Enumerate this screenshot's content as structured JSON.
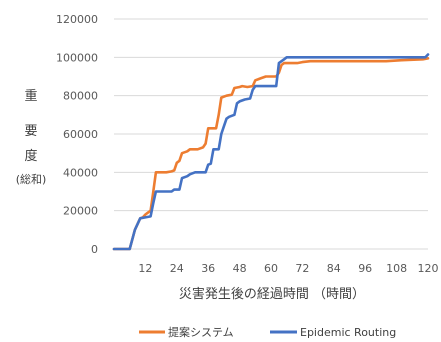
{
  "chart_data": {
    "type": "line",
    "xlabel": "災害発生後の経過時間 （時間）",
    "ylabel_chars": [
      "重",
      "要",
      "度"
    ],
    "ylabel_sub": "(総和)",
    "xlim": [
      0,
      120
    ],
    "ylim": [
      0,
      120000
    ],
    "xticks": [
      12,
      24,
      36,
      48,
      60,
      72,
      84,
      96,
      108,
      120
    ],
    "yticks": [
      0,
      20000,
      40000,
      60000,
      80000,
      100000,
      120000
    ],
    "grid": "horizontal",
    "legend_position": "bottom",
    "series": [
      {
        "name": "提案システム",
        "color": "#ED7D31",
        "points": [
          [
            0,
            0
          ],
          [
            6,
            0
          ],
          [
            8,
            10000
          ],
          [
            10,
            16000
          ],
          [
            11,
            16500
          ],
          [
            12,
            18000
          ],
          [
            13,
            19000
          ],
          [
            14,
            20000
          ],
          [
            15,
            30000
          ],
          [
            16,
            40000
          ],
          [
            20,
            40000
          ],
          [
            22,
            40500
          ],
          [
            23,
            41000
          ],
          [
            24,
            45000
          ],
          [
            25,
            46000
          ],
          [
            26,
            50000
          ],
          [
            28,
            51000
          ],
          [
            29,
            52000
          ],
          [
            32,
            52000
          ],
          [
            34,
            53000
          ],
          [
            35,
            55000
          ],
          [
            36,
            63000
          ],
          [
            39,
            63000
          ],
          [
            40,
            70000
          ],
          [
            41,
            79000
          ],
          [
            42,
            79500
          ],
          [
            43,
            80000
          ],
          [
            45,
            80500
          ],
          [
            46,
            84000
          ],
          [
            48,
            84500
          ],
          [
            49,
            85000
          ],
          [
            51,
            84500
          ],
          [
            53,
            85000
          ],
          [
            54,
            88000
          ],
          [
            55,
            88500
          ],
          [
            56,
            89000
          ],
          [
            58,
            90000
          ],
          [
            62,
            90000
          ],
          [
            63,
            92000
          ],
          [
            64,
            96000
          ],
          [
            65,
            97000
          ],
          [
            70,
            97000
          ],
          [
            72,
            97500
          ],
          [
            75,
            98000
          ],
          [
            104,
            98000
          ],
          [
            110,
            98500
          ],
          [
            118,
            99000
          ],
          [
            120,
            99500
          ]
        ]
      },
      {
        "name": "Epidemic Routing",
        "color": "#4472C4",
        "points": [
          [
            0,
            0
          ],
          [
            6,
            0
          ],
          [
            8,
            10000
          ],
          [
            10,
            16000
          ],
          [
            12,
            16500
          ],
          [
            14,
            17000
          ],
          [
            15,
            24000
          ],
          [
            16,
            30000
          ],
          [
            22,
            30000
          ],
          [
            23,
            31000
          ],
          [
            25,
            31000
          ],
          [
            26,
            37000
          ],
          [
            28,
            38000
          ],
          [
            29,
            39000
          ],
          [
            31,
            40000
          ],
          [
            35,
            40000
          ],
          [
            36,
            44000
          ],
          [
            37,
            44500
          ],
          [
            38,
            52000
          ],
          [
            40,
            52000
          ],
          [
            41,
            60000
          ],
          [
            42,
            64000
          ],
          [
            43,
            68000
          ],
          [
            44,
            69000
          ],
          [
            46,
            70000
          ],
          [
            47,
            76000
          ],
          [
            48,
            77000
          ],
          [
            50,
            78000
          ],
          [
            52,
            78500
          ],
          [
            53,
            83000
          ],
          [
            54,
            85000
          ],
          [
            62,
            85000
          ],
          [
            63,
            97000
          ],
          [
            64,
            98000
          ],
          [
            65,
            99000
          ],
          [
            66,
            100000
          ],
          [
            119,
            100000
          ],
          [
            120,
            101500
          ]
        ]
      }
    ]
  }
}
